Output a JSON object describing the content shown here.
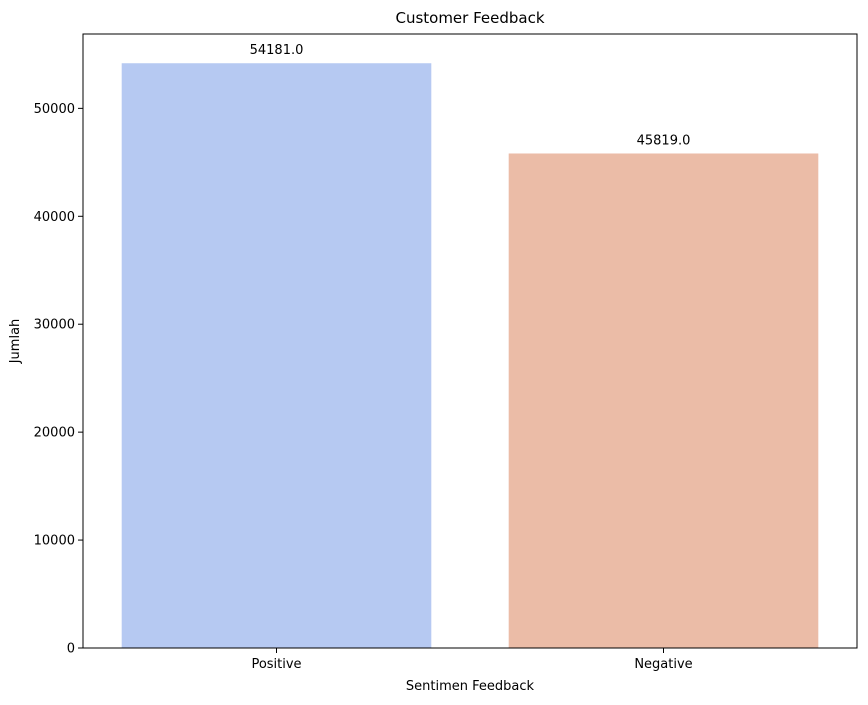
{
  "chart_data": {
    "type": "bar",
    "title": "Customer Feedback",
    "xlabel": "Sentimen Feedback",
    "ylabel": "Jumlah",
    "categories": [
      "Positive",
      "Negative"
    ],
    "values": [
      54181.0,
      45819.0
    ],
    "data_labels": [
      "54181.0",
      "45819.0"
    ],
    "colors": [
      "#b6c9f2",
      "#ebbca7"
    ],
    "ylim": [
      0,
      56890
    ],
    "yticks": [
      0,
      10000,
      20000,
      30000,
      40000,
      50000
    ],
    "ytick_labels": [
      "0",
      "10000",
      "20000",
      "30000",
      "40000",
      "50000"
    ],
    "grid": false,
    "legend": "none"
  }
}
